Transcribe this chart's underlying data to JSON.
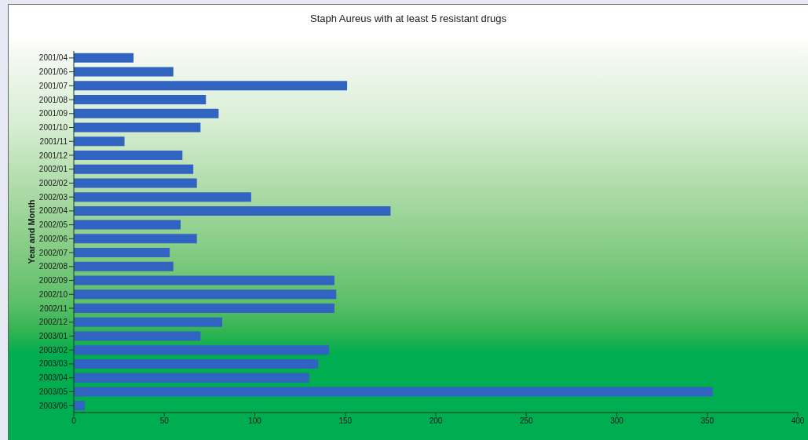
{
  "chart_data": {
    "type": "bar",
    "orientation": "horizontal",
    "title": "Staph Aureus with at least 5 resistant drugs",
    "ylabel": "Year and Month",
    "categories": [
      "2001/04",
      "2001/06",
      "2001/07",
      "2001/08",
      "2001/09",
      "2001/10",
      "2001/11",
      "2001/12",
      "2002/01",
      "2002/02",
      "2002/03",
      "2002/04",
      "2002/05",
      "2002/06",
      "2002/07",
      "2002/08",
      "2002/09",
      "2002/10",
      "2002/11",
      "2002/12",
      "2003/01",
      "2003/02",
      "2003/03",
      "2003/04",
      "2003/05",
      "2003/06"
    ],
    "values": [
      33,
      55,
      151,
      73,
      80,
      70,
      28,
      60,
      66,
      68,
      98,
      175,
      59,
      68,
      53,
      55,
      144,
      145,
      144,
      82,
      70,
      141,
      135,
      130,
      353,
      6
    ],
    "color": "#3163c0",
    "xlim": [
      0,
      400
    ],
    "xticks": [
      0,
      50,
      100,
      150,
      200,
      250,
      300,
      350,
      400
    ]
  }
}
